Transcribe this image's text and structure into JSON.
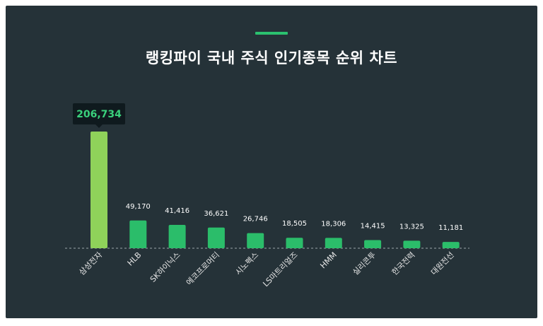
{
  "title": "랭킹파이 국내 주식 인기종목 순위 차트",
  "colors": {
    "background": "#253238",
    "accent": "#2bc16f",
    "bar": "#2bbd6a",
    "highlight_bar": "#8fd25a",
    "tooltip_bg": "#0f1a1e",
    "highlight_value": "#3ad17c"
  },
  "chart_data": {
    "type": "bar",
    "title": "랭킹파이 국내 주식 인기종목 순위 차트",
    "categories": [
      "삼성전자",
      "HLB",
      "SK하이닉스",
      "에코프로머티",
      "시노펙스",
      "LS마트리얼즈",
      "HMM",
      "실리콘투",
      "한국전력",
      "대원전선"
    ],
    "values": [
      206734,
      49170,
      41416,
      36621,
      26746,
      18505,
      18306,
      14415,
      13325,
      11181
    ],
    "value_labels": [
      "206,734",
      "49,170",
      "41,416",
      "36,621",
      "26,746",
      "18,505",
      "18,306",
      "14,415",
      "13,325",
      "11,181"
    ],
    "highlighted_index": 0,
    "xlabel": "",
    "ylabel": "",
    "ylim": [
      0,
      206734
    ],
    "grid": false,
    "legend": "none"
  }
}
